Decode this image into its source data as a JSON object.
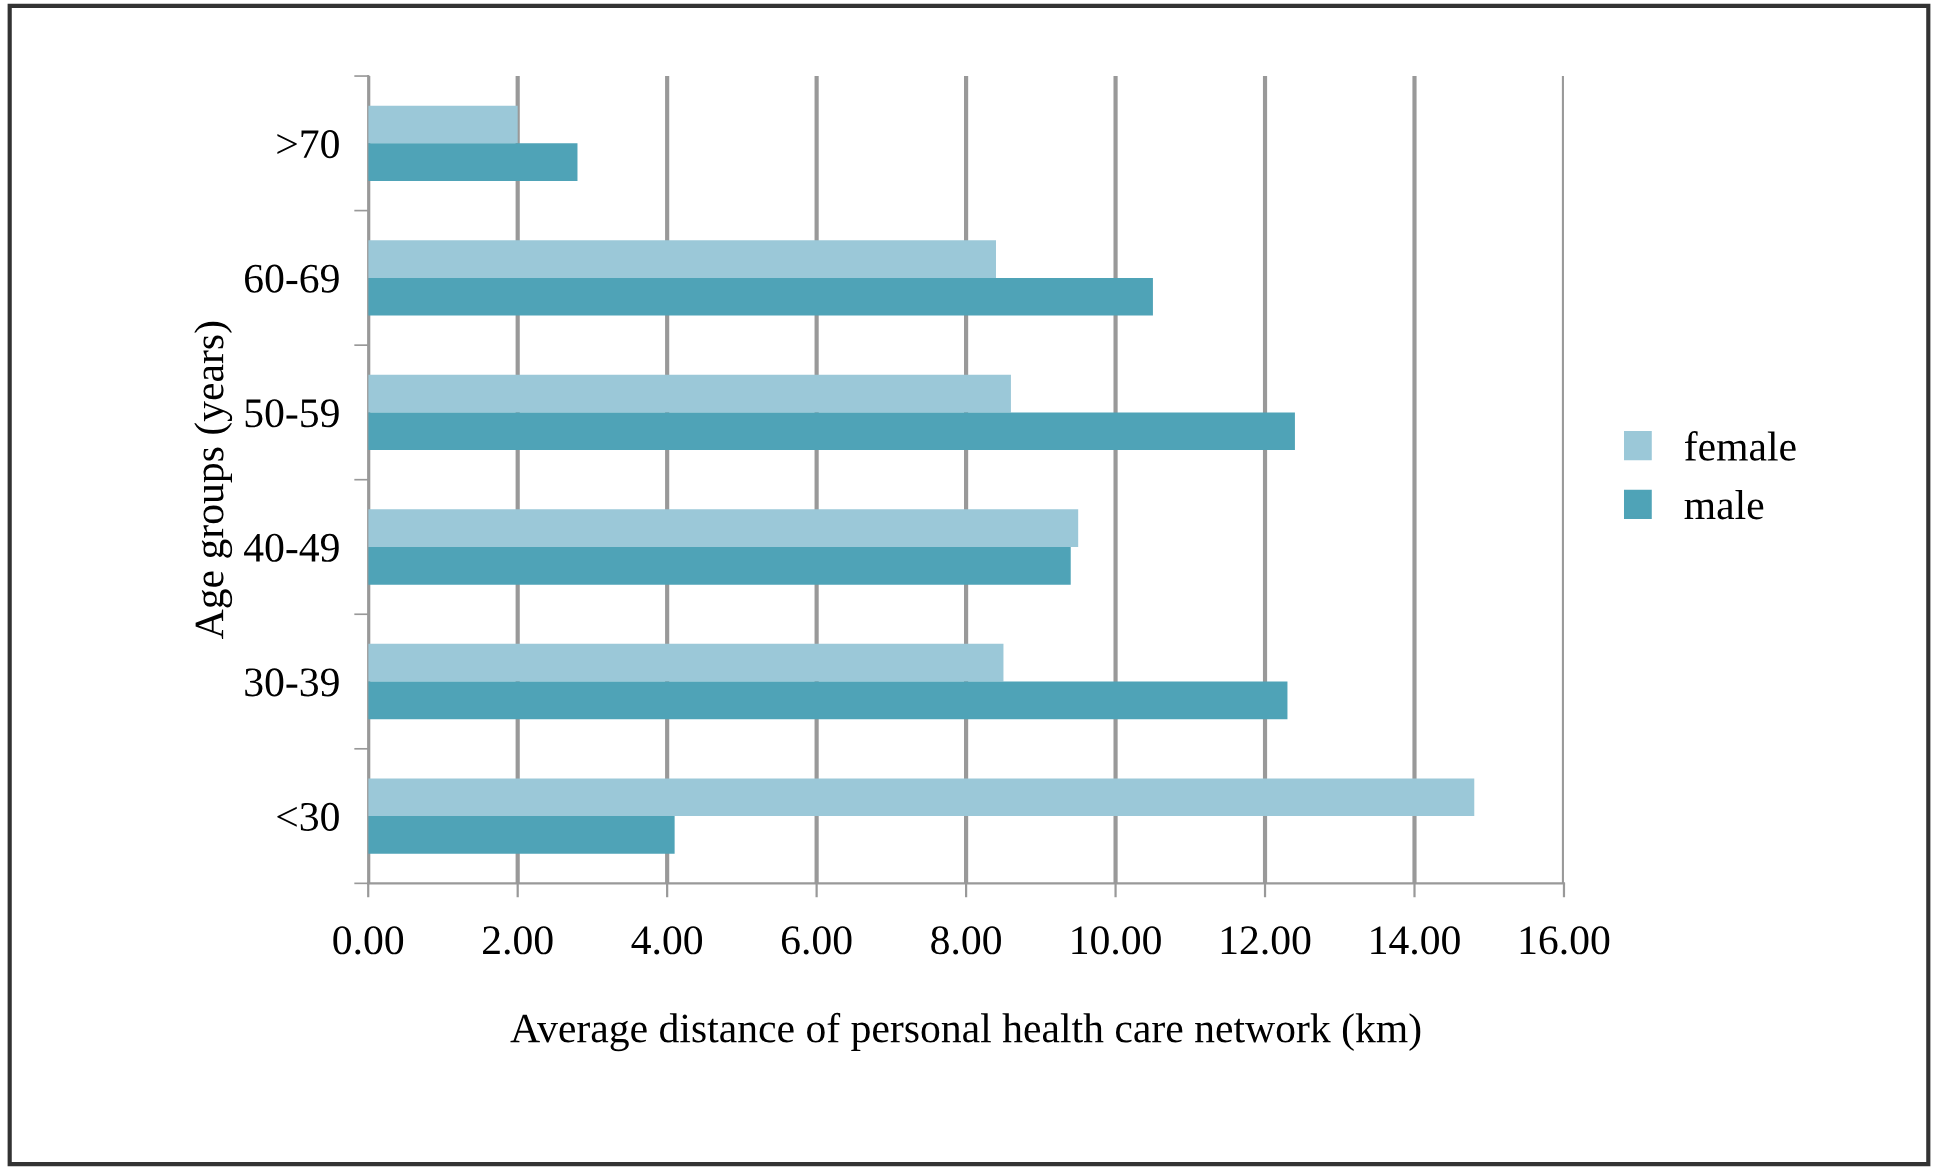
{
  "chart_data": {
    "type": "bar",
    "orientation": "horizontal",
    "xlabel": "Average distance of personal health care network (km)",
    "ylabel": "Age groups (years)",
    "categories": [
      ">70",
      "60-69",
      "50-59",
      "40-49",
      "30-39",
      "<30"
    ],
    "series": [
      {
        "name": "female",
        "color": "#9bc8d8",
        "values": [
          2.0,
          8.4,
          8.6,
          9.5,
          8.5,
          14.8
        ]
      },
      {
        "name": "male",
        "color": "#4fa3b7",
        "values": [
          2.8,
          10.5,
          12.4,
          9.4,
          12.3,
          4.1
        ]
      }
    ],
    "xlim": [
      0,
      16
    ],
    "xticks": [
      {
        "value": 0,
        "label": "0.00"
      },
      {
        "value": 2,
        "label": "2.00"
      },
      {
        "value": 4,
        "label": "4.00"
      },
      {
        "value": 6,
        "label": "6.00"
      },
      {
        "value": 8,
        "label": "8.00"
      },
      {
        "value": 10,
        "label": "10.00"
      },
      {
        "value": 12,
        "label": "12.00"
      },
      {
        "value": 14,
        "label": "14.00"
      },
      {
        "value": 16,
        "label": "16.00"
      }
    ],
    "grid": "x",
    "legend": "right"
  }
}
